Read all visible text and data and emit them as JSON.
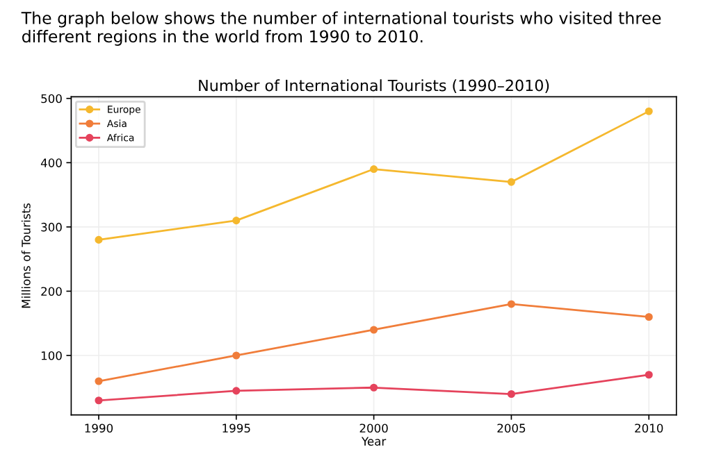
{
  "chart_data": {
    "type": "line",
    "title": "Number of International Tourists (1990–2010)",
    "xlabel": "Year",
    "ylabel": "Millions of Tourists",
    "annotations": [
      "The graph below shows the number of international tourists who visited three different regions in the world from 1990 to 2010."
    ],
    "x": [
      1990,
      1995,
      2000,
      2005,
      2010
    ],
    "series": [
      {
        "name": "Europe",
        "color": "#f5b82e",
        "values": [
          280,
          310,
          390,
          370,
          480
        ]
      },
      {
        "name": "Asia",
        "color": "#f07d3a",
        "values": [
          60,
          100,
          140,
          180,
          160
        ]
      },
      {
        "name": "Africa",
        "color": "#e5435c",
        "values": [
          30,
          45,
          50,
          40,
          70
        ]
      }
    ],
    "xlim": [
      1989,
      2011
    ],
    "xticks": [
      1990,
      1995,
      2000,
      2005,
      2010
    ],
    "ylim": [
      7.5,
      502.5
    ],
    "yticks": [
      100,
      200,
      300,
      400,
      500
    ],
    "grid": true,
    "legend": "top left",
    "marker": "circle",
    "line_style": "solid"
  }
}
